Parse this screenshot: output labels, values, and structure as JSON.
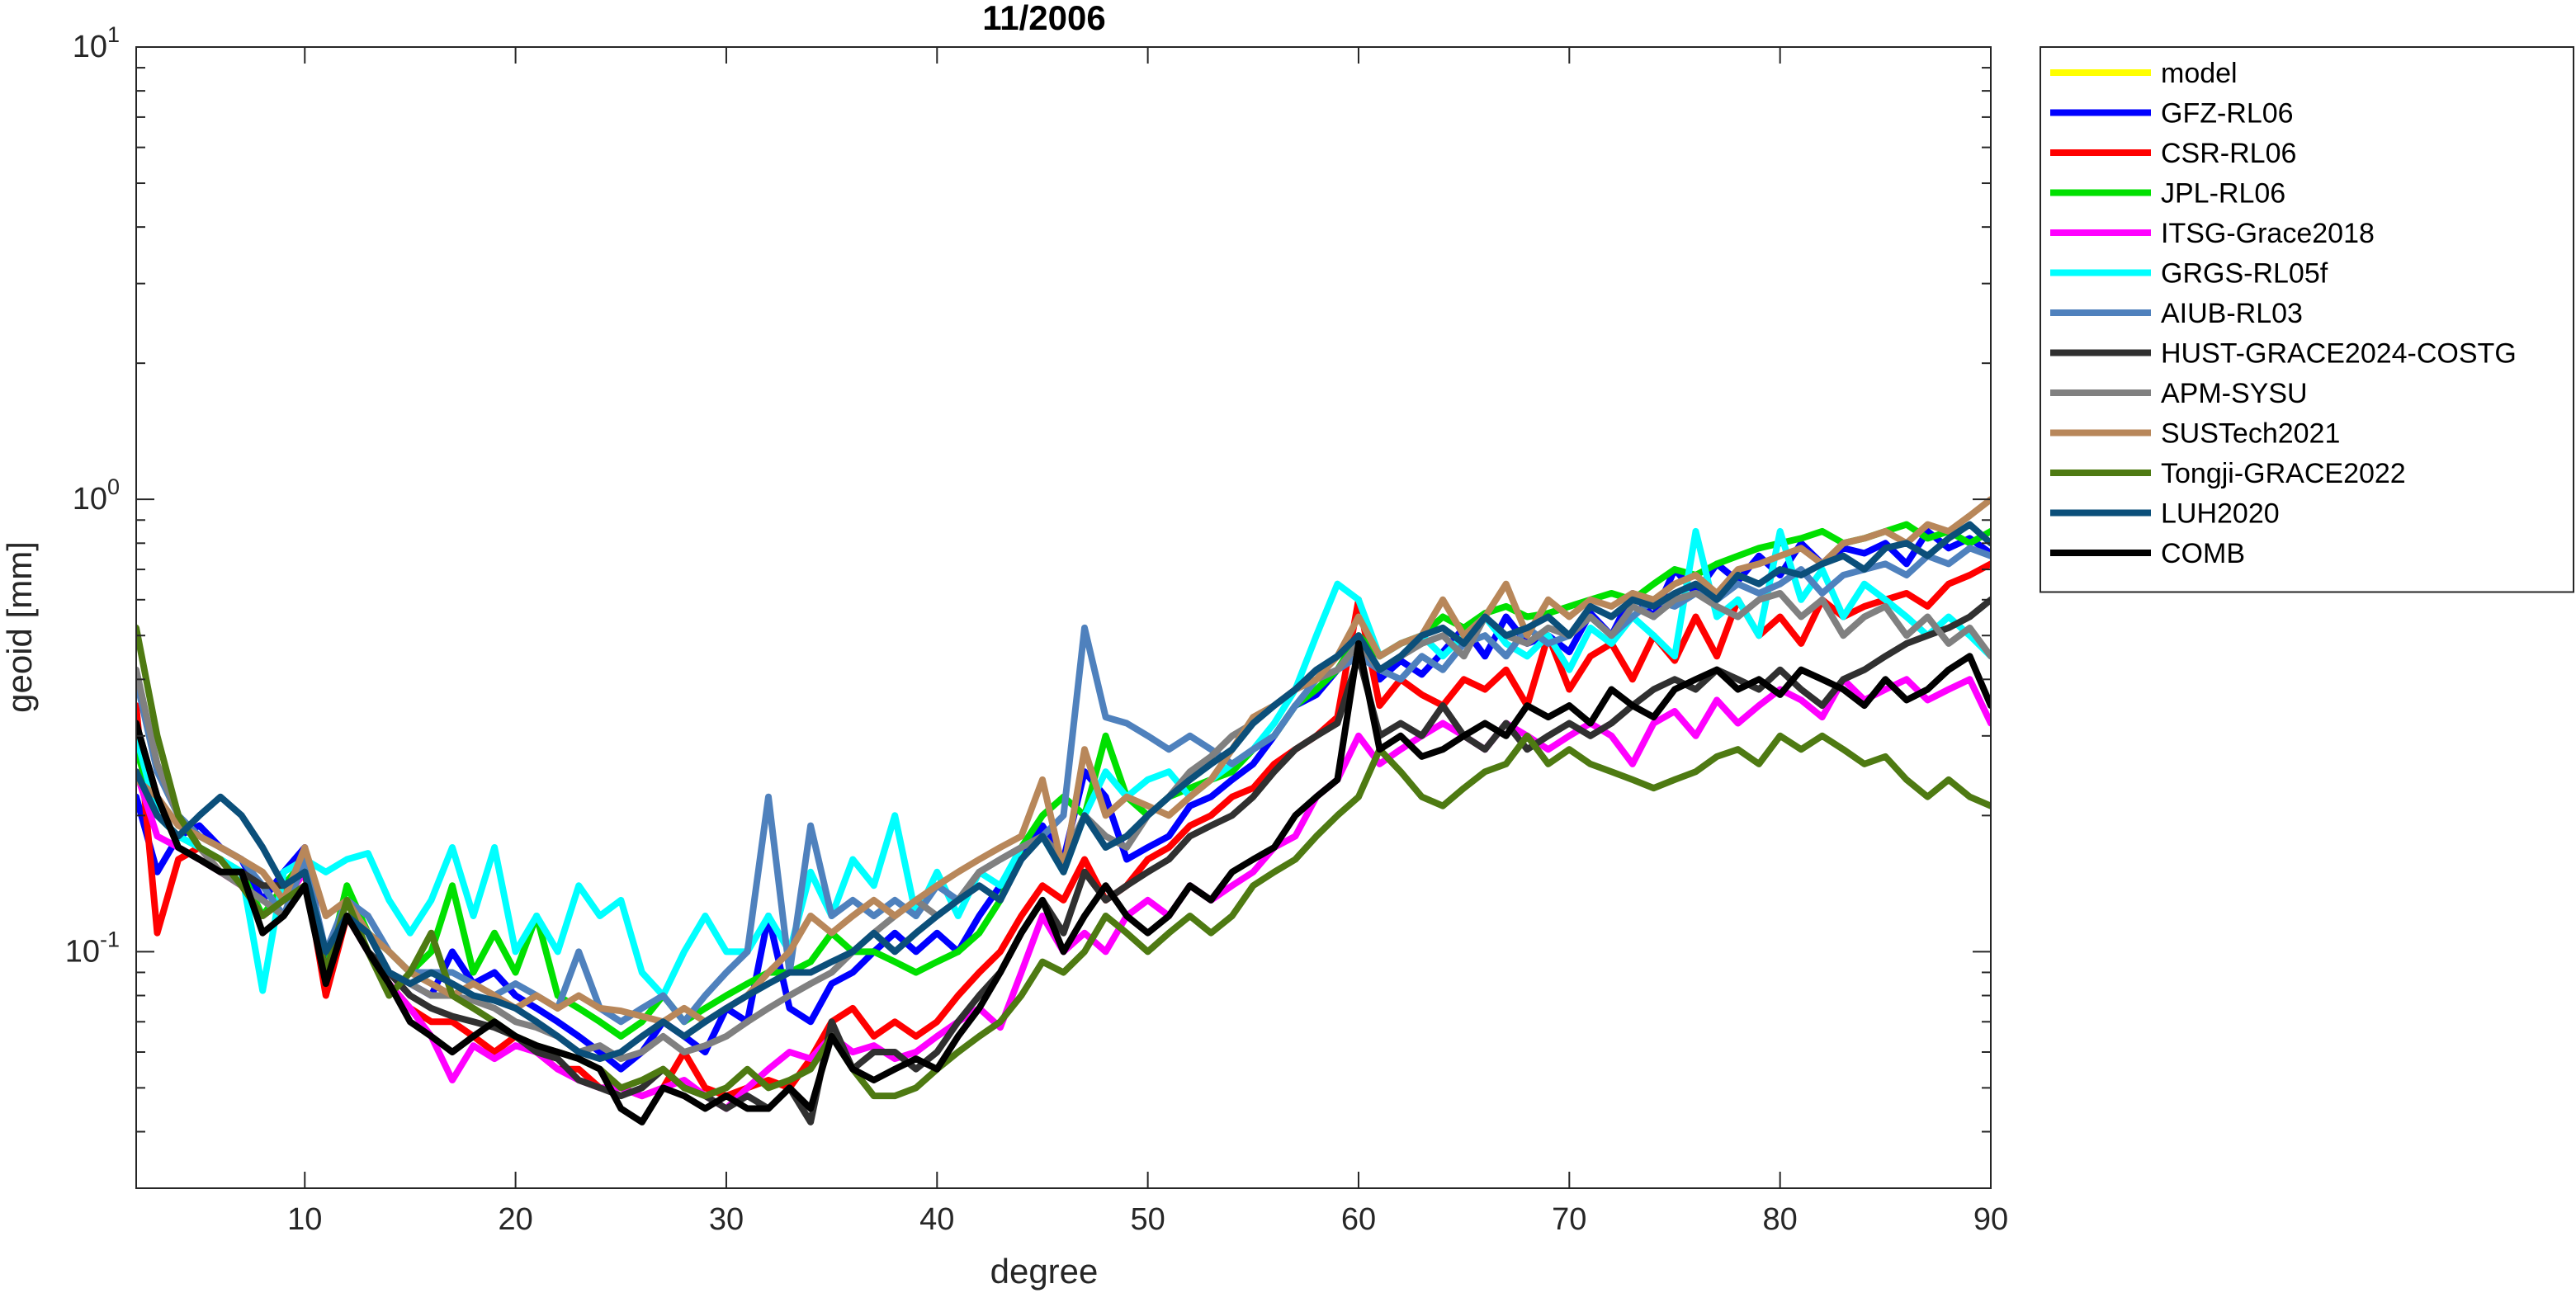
{
  "chart_data": {
    "type": "line",
    "title": "11/2006",
    "xlabel": "degree",
    "ylabel": "geoid [mm]",
    "xlim": [
      2,
      90
    ],
    "ylim": [
      0.03,
      10
    ],
    "yscale": "log",
    "xticks": [
      10,
      20,
      30,
      40,
      50,
      60,
      70,
      80,
      90
    ],
    "xtick_labels": [
      "10",
      "20",
      "30",
      "40",
      "50",
      "60",
      "70",
      "80",
      "90"
    ],
    "yticks": [
      {
        "value": 0.1,
        "base": "10",
        "exp": "-1"
      },
      {
        "value": 1,
        "base": "10",
        "exp": "0"
      },
      {
        "value": 10,
        "base": "10",
        "exp": "1"
      }
    ],
    "grid": false,
    "legend_position": "outside-right",
    "x_start": 2,
    "series": [
      {
        "name": "model",
        "color": "#FFFF00",
        "values": []
      },
      {
        "name": "GFZ-RL06",
        "color": "#0000FF",
        "values": [
          0.22,
          0.15,
          0.18,
          0.19,
          0.17,
          0.16,
          0.13,
          0.15,
          0.17,
          0.095,
          0.13,
          0.11,
          0.09,
          0.085,
          0.08,
          0.1,
          0.085,
          0.09,
          0.08,
          0.075,
          0.07,
          0.065,
          0.06,
          0.055,
          0.06,
          0.07,
          0.065,
          0.06,
          0.075,
          0.07,
          0.12,
          0.075,
          0.07,
          0.085,
          0.09,
          0.1,
          0.11,
          0.1,
          0.11,
          0.1,
          0.12,
          0.14,
          0.16,
          0.19,
          0.16,
          0.25,
          0.22,
          0.16,
          0.17,
          0.18,
          0.21,
          0.22,
          0.24,
          0.26,
          0.3,
          0.35,
          0.37,
          0.42,
          0.48,
          0.4,
          0.44,
          0.41,
          0.46,
          0.52,
          0.45,
          0.55,
          0.48,
          0.5,
          0.46,
          0.56,
          0.5,
          0.62,
          0.55,
          0.7,
          0.62,
          0.72,
          0.66,
          0.75,
          0.68,
          0.8,
          0.72,
          0.78,
          0.76,
          0.8,
          0.72,
          0.85,
          0.78,
          0.82,
          0.76
        ]
      },
      {
        "name": "CSR-RL06",
        "color": "#FF0000",
        "values": [
          0.35,
          0.11,
          0.16,
          0.17,
          0.15,
          0.14,
          0.12,
          0.13,
          0.15,
          0.08,
          0.12,
          0.1,
          0.085,
          0.075,
          0.07,
          0.07,
          0.065,
          0.06,
          0.065,
          0.06,
          0.055,
          0.055,
          0.05,
          0.05,
          0.048,
          0.05,
          0.06,
          0.05,
          0.048,
          0.05,
          0.052,
          0.05,
          0.058,
          0.07,
          0.075,
          0.065,
          0.07,
          0.065,
          0.07,
          0.08,
          0.09,
          0.1,
          0.12,
          0.14,
          0.13,
          0.16,
          0.13,
          0.14,
          0.16,
          0.17,
          0.19,
          0.2,
          0.22,
          0.23,
          0.26,
          0.28,
          0.3,
          0.33,
          0.6,
          0.35,
          0.4,
          0.37,
          0.35,
          0.4,
          0.38,
          0.42,
          0.35,
          0.5,
          0.38,
          0.45,
          0.48,
          0.4,
          0.5,
          0.44,
          0.55,
          0.45,
          0.6,
          0.5,
          0.55,
          0.48,
          0.6,
          0.55,
          0.58,
          0.6,
          0.62,
          0.58,
          0.65,
          0.68,
          0.72
        ]
      },
      {
        "name": "JPL-RL06",
        "color": "#00E000",
        "values": [
          0.28,
          0.2,
          0.18,
          0.17,
          0.16,
          0.15,
          0.12,
          0.14,
          0.16,
          0.09,
          0.14,
          0.11,
          0.1,
          0.09,
          0.1,
          0.14,
          0.09,
          0.11,
          0.09,
          0.12,
          0.08,
          0.075,
          0.07,
          0.065,
          0.07,
          0.08,
          0.07,
          0.075,
          0.08,
          0.085,
          0.09,
          0.09,
          0.095,
          0.11,
          0.1,
          0.1,
          0.095,
          0.09,
          0.095,
          0.1,
          0.11,
          0.13,
          0.17,
          0.2,
          0.22,
          0.2,
          0.3,
          0.22,
          0.2,
          0.22,
          0.23,
          0.24,
          0.25,
          0.28,
          0.3,
          0.35,
          0.38,
          0.42,
          0.5,
          0.45,
          0.48,
          0.5,
          0.55,
          0.52,
          0.56,
          0.58,
          0.55,
          0.56,
          0.58,
          0.6,
          0.62,
          0.6,
          0.65,
          0.7,
          0.68,
          0.72,
          0.75,
          0.78,
          0.8,
          0.82,
          0.85,
          0.8,
          0.82,
          0.85,
          0.88,
          0.82,
          0.85,
          0.8,
          0.85
        ]
      },
      {
        "name": "ITSG-Grace2018",
        "color": "#FF00FF",
        "values": [
          0.25,
          0.18,
          0.17,
          0.16,
          0.15,
          0.14,
          0.12,
          0.13,
          0.15,
          0.09,
          0.12,
          0.1,
          0.085,
          0.075,
          0.065,
          0.052,
          0.062,
          0.058,
          0.062,
          0.06,
          0.055,
          0.052,
          0.05,
          0.05,
          0.048,
          0.05,
          0.052,
          0.048,
          0.045,
          0.05,
          0.055,
          0.06,
          0.058,
          0.065,
          0.06,
          0.062,
          0.058,
          0.06,
          0.065,
          0.07,
          0.075,
          0.068,
          0.09,
          0.12,
          0.1,
          0.11,
          0.1,
          0.12,
          0.13,
          0.12,
          0.14,
          0.13,
          0.14,
          0.15,
          0.17,
          0.18,
          0.22,
          0.24,
          0.3,
          0.26,
          0.28,
          0.3,
          0.32,
          0.3,
          0.28,
          0.32,
          0.3,
          0.28,
          0.3,
          0.32,
          0.3,
          0.26,
          0.32,
          0.34,
          0.3,
          0.36,
          0.32,
          0.35,
          0.38,
          0.36,
          0.33,
          0.4,
          0.36,
          0.38,
          0.4,
          0.36,
          0.38,
          0.4,
          0.32
        ]
      },
      {
        "name": "GRGS-RL05f",
        "color": "#00FFFF",
        "values": [
          0.3,
          0.2,
          0.18,
          0.17,
          0.16,
          0.15,
          0.082,
          0.15,
          0.16,
          0.15,
          0.16,
          0.165,
          0.13,
          0.11,
          0.13,
          0.17,
          0.12,
          0.17,
          0.1,
          0.12,
          0.1,
          0.14,
          0.12,
          0.13,
          0.09,
          0.08,
          0.1,
          0.12,
          0.1,
          0.1,
          0.12,
          0.1,
          0.15,
          0.12,
          0.16,
          0.14,
          0.2,
          0.12,
          0.15,
          0.12,
          0.15,
          0.14,
          0.17,
          0.18,
          0.15,
          0.2,
          0.25,
          0.22,
          0.24,
          0.25,
          0.22,
          0.24,
          0.26,
          0.28,
          0.32,
          0.38,
          0.5,
          0.65,
          0.6,
          0.45,
          0.48,
          0.5,
          0.45,
          0.5,
          0.55,
          0.48,
          0.45,
          0.5,
          0.42,
          0.52,
          0.48,
          0.55,
          0.5,
          0.45,
          0.85,
          0.55,
          0.6,
          0.5,
          0.85,
          0.6,
          0.7,
          0.55,
          0.65,
          0.6,
          0.55,
          0.5,
          0.55,
          0.5,
          0.45
        ]
      },
      {
        "name": "AIUB-RL03",
        "color": "#4F81BD",
        "values": [
          0.4,
          0.25,
          0.2,
          0.18,
          0.17,
          0.16,
          0.14,
          0.12,
          0.16,
          0.1,
          0.13,
          0.12,
          0.1,
          0.09,
          0.09,
          0.09,
          0.085,
          0.08,
          0.085,
          0.08,
          0.075,
          0.1,
          0.075,
          0.07,
          0.075,
          0.08,
          0.07,
          0.08,
          0.09,
          0.1,
          0.22,
          0.09,
          0.19,
          0.12,
          0.13,
          0.12,
          0.13,
          0.12,
          0.14,
          0.13,
          0.15,
          0.16,
          0.17,
          0.18,
          0.2,
          0.52,
          0.33,
          0.32,
          0.3,
          0.28,
          0.3,
          0.28,
          0.26,
          0.28,
          0.3,
          0.35,
          0.4,
          0.42,
          0.45,
          0.42,
          0.4,
          0.45,
          0.42,
          0.48,
          0.5,
          0.45,
          0.52,
          0.48,
          0.5,
          0.55,
          0.5,
          0.55,
          0.6,
          0.58,
          0.62,
          0.6,
          0.65,
          0.62,
          0.65,
          0.7,
          0.62,
          0.68,
          0.7,
          0.72,
          0.68,
          0.75,
          0.72,
          0.78,
          0.75
        ]
      },
      {
        "name": "HUST-GRACE2024-COSTG",
        "color": "#303030",
        "values": [
          0.32,
          0.22,
          0.17,
          0.16,
          0.15,
          0.15,
          0.14,
          0.14,
          0.15,
          0.09,
          0.12,
          0.1,
          0.09,
          0.08,
          0.075,
          0.072,
          0.07,
          0.068,
          0.065,
          0.06,
          0.058,
          0.052,
          0.05,
          0.048,
          0.05,
          0.055,
          0.05,
          0.048,
          0.045,
          0.048,
          0.045,
          0.05,
          0.042,
          0.07,
          0.055,
          0.06,
          0.06,
          0.055,
          0.06,
          0.07,
          0.08,
          0.09,
          0.11,
          0.13,
          0.11,
          0.15,
          0.13,
          0.14,
          0.15,
          0.16,
          0.18,
          0.19,
          0.2,
          0.22,
          0.25,
          0.28,
          0.3,
          0.32,
          0.45,
          0.3,
          0.32,
          0.3,
          0.35,
          0.3,
          0.28,
          0.32,
          0.28,
          0.3,
          0.32,
          0.3,
          0.32,
          0.35,
          0.38,
          0.4,
          0.38,
          0.42,
          0.4,
          0.38,
          0.42,
          0.38,
          0.35,
          0.4,
          0.42,
          0.45,
          0.48,
          0.5,
          0.52,
          0.55,
          0.6
        ]
      },
      {
        "name": "APM-SYSU",
        "color": "#808080",
        "values": [
          0.42,
          0.26,
          0.2,
          0.17,
          0.15,
          0.14,
          0.13,
          0.12,
          0.14,
          0.09,
          0.12,
          0.11,
          0.09,
          0.085,
          0.08,
          0.08,
          0.078,
          0.075,
          0.07,
          0.068,
          0.065,
          0.06,
          0.062,
          0.058,
          0.06,
          0.065,
          0.06,
          0.062,
          0.065,
          0.07,
          0.075,
          0.08,
          0.085,
          0.09,
          0.1,
          0.11,
          0.12,
          0.13,
          0.12,
          0.13,
          0.15,
          0.16,
          0.17,
          0.18,
          0.16,
          0.2,
          0.18,
          0.17,
          0.2,
          0.22,
          0.25,
          0.27,
          0.3,
          0.32,
          0.35,
          0.38,
          0.4,
          0.42,
          0.48,
          0.42,
          0.45,
          0.48,
          0.5,
          0.45,
          0.55,
          0.5,
          0.48,
          0.52,
          0.5,
          0.55,
          0.5,
          0.58,
          0.55,
          0.6,
          0.62,
          0.58,
          0.55,
          0.6,
          0.62,
          0.55,
          0.6,
          0.5,
          0.55,
          0.58,
          0.5,
          0.55,
          0.48,
          0.52,
          0.45
        ]
      },
      {
        "name": "SUSTech2021",
        "color": "#B8875A",
        "values": [
          0.24,
          0.22,
          0.19,
          0.18,
          0.17,
          0.16,
          0.15,
          0.13,
          0.17,
          0.12,
          0.13,
          0.11,
          0.1,
          0.09,
          0.085,
          0.08,
          0.085,
          0.08,
          0.075,
          0.08,
          0.075,
          0.08,
          0.075,
          0.074,
          0.072,
          0.07,
          0.075,
          0.07,
          0.075,
          0.08,
          0.09,
          0.1,
          0.12,
          0.11,
          0.12,
          0.13,
          0.12,
          0.13,
          0.14,
          0.15,
          0.16,
          0.17,
          0.18,
          0.24,
          0.15,
          0.28,
          0.2,
          0.22,
          0.21,
          0.2,
          0.22,
          0.24,
          0.28,
          0.33,
          0.35,
          0.38,
          0.4,
          0.45,
          0.55,
          0.45,
          0.48,
          0.5,
          0.6,
          0.5,
          0.55,
          0.65,
          0.5,
          0.6,
          0.55,
          0.6,
          0.58,
          0.62,
          0.6,
          0.65,
          0.68,
          0.62,
          0.7,
          0.72,
          0.75,
          0.78,
          0.72,
          0.8,
          0.82,
          0.85,
          0.8,
          0.88,
          0.85,
          0.92,
          1.0
        ]
      },
      {
        "name": "Tongji-GRACE2022",
        "color": "#4E7A12",
        "values": [
          0.52,
          0.3,
          0.2,
          0.17,
          0.16,
          0.14,
          0.12,
          0.13,
          0.14,
          0.09,
          0.13,
          0.1,
          0.08,
          0.09,
          0.11,
          0.08,
          0.075,
          0.07,
          0.065,
          0.062,
          0.06,
          0.058,
          0.055,
          0.05,
          0.052,
          0.055,
          0.05,
          0.048,
          0.05,
          0.055,
          0.05,
          0.052,
          0.055,
          0.065,
          0.055,
          0.048,
          0.048,
          0.05,
          0.055,
          0.06,
          0.065,
          0.07,
          0.08,
          0.095,
          0.09,
          0.1,
          0.12,
          0.11,
          0.1,
          0.11,
          0.12,
          0.11,
          0.12,
          0.14,
          0.15,
          0.16,
          0.18,
          0.2,
          0.22,
          0.28,
          0.25,
          0.22,
          0.21,
          0.23,
          0.25,
          0.26,
          0.3,
          0.26,
          0.28,
          0.26,
          0.25,
          0.24,
          0.23,
          0.24,
          0.25,
          0.27,
          0.28,
          0.26,
          0.3,
          0.28,
          0.3,
          0.28,
          0.26,
          0.27,
          0.24,
          0.22,
          0.24,
          0.22,
          0.21
        ]
      },
      {
        "name": "LUH2020",
        "color": "#0B4F7A",
        "values": [
          0.25,
          0.2,
          0.18,
          0.2,
          0.22,
          0.2,
          0.17,
          0.14,
          0.15,
          0.1,
          0.12,
          0.11,
          0.09,
          0.085,
          0.09,
          0.085,
          0.08,
          0.078,
          0.075,
          0.07,
          0.065,
          0.06,
          0.058,
          0.06,
          0.065,
          0.07,
          0.065,
          0.07,
          0.075,
          0.08,
          0.085,
          0.09,
          0.09,
          0.095,
          0.1,
          0.11,
          0.1,
          0.11,
          0.12,
          0.13,
          0.14,
          0.13,
          0.16,
          0.18,
          0.15,
          0.2,
          0.17,
          0.18,
          0.2,
          0.22,
          0.24,
          0.26,
          0.28,
          0.32,
          0.35,
          0.38,
          0.42,
          0.45,
          0.5,
          0.42,
          0.45,
          0.5,
          0.52,
          0.48,
          0.55,
          0.5,
          0.52,
          0.55,
          0.5,
          0.58,
          0.55,
          0.6,
          0.58,
          0.62,
          0.65,
          0.6,
          0.68,
          0.65,
          0.7,
          0.68,
          0.72,
          0.75,
          0.7,
          0.78,
          0.8,
          0.75,
          0.82,
          0.88,
          0.8
        ]
      },
      {
        "name": "COMB",
        "color": "#000000",
        "values": [
          0.32,
          0.22,
          0.17,
          0.16,
          0.15,
          0.15,
          0.11,
          0.12,
          0.14,
          0.085,
          0.12,
          0.1,
          0.085,
          0.07,
          0.065,
          0.06,
          0.065,
          0.07,
          0.065,
          0.062,
          0.06,
          0.058,
          0.055,
          0.045,
          0.042,
          0.05,
          0.048,
          0.045,
          0.048,
          0.045,
          0.045,
          0.05,
          0.045,
          0.065,
          0.055,
          0.052,
          0.055,
          0.058,
          0.055,
          0.065,
          0.075,
          0.09,
          0.11,
          0.13,
          0.1,
          0.12,
          0.14,
          0.12,
          0.11,
          0.12,
          0.14,
          0.13,
          0.15,
          0.16,
          0.17,
          0.2,
          0.22,
          0.24,
          0.48,
          0.28,
          0.3,
          0.27,
          0.28,
          0.3,
          0.32,
          0.3,
          0.35,
          0.33,
          0.35,
          0.32,
          0.38,
          0.35,
          0.33,
          0.38,
          0.4,
          0.42,
          0.38,
          0.4,
          0.37,
          0.42,
          0.4,
          0.38,
          0.35,
          0.4,
          0.36,
          0.38,
          0.42,
          0.45,
          0.35
        ]
      }
    ]
  }
}
